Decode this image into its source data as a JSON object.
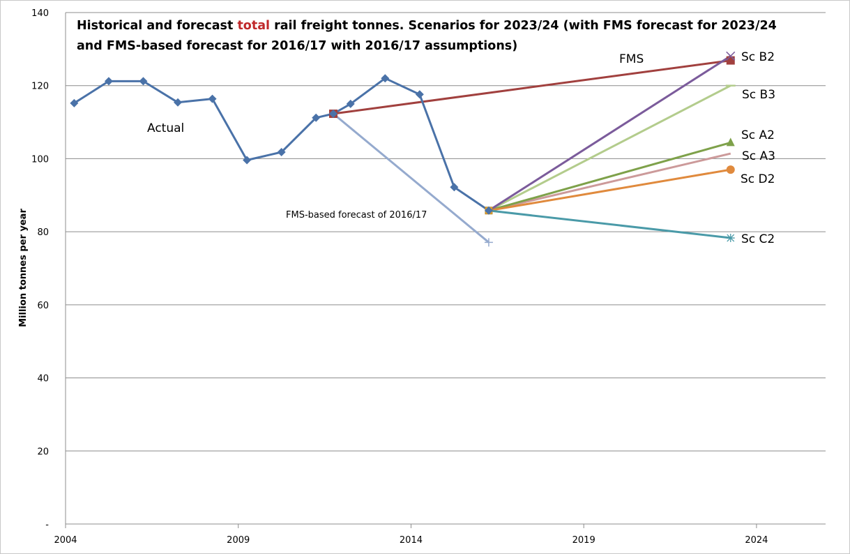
{
  "chart_data": {
    "type": "line",
    "title": {
      "line1_part1": "Historical and forecast ",
      "line1_highlight": "total",
      "line1_part2": " rail freight tonnes.  Scenarios for 2023/24 (with FMS forecast for 2023/24",
      "line2": "and FMS-based forecast for 2016/17 with 2016/17 assumptions)"
    },
    "highlight_color": "#c0282a",
    "ylabel": "Million tonnes per year",
    "xlabel": "",
    "xlim": [
      2004,
      2026
    ],
    "ylim": [
      0,
      140
    ],
    "x_ticks": [
      "2004",
      "2009",
      "2014",
      "2019",
      "2024"
    ],
    "x_tick_values": [
      2004,
      2009,
      2014,
      2019,
      2024
    ],
    "y_ticks": [
      "-",
      "20",
      "40",
      "60",
      "80",
      "100",
      "120",
      "140"
    ],
    "y_tick_values": [
      0,
      20,
      40,
      60,
      80,
      100,
      120,
      140
    ],
    "grid": "horizontal",
    "annotations": {
      "actual": "Actual",
      "fms": "FMS",
      "fms_based": "FMS-based forecast of 2016/17"
    },
    "series": [
      {
        "key": "actual",
        "marker": "diamond",
        "color": "#4a72a8",
        "x": [
          2004.25,
          2005.25,
          2006.25,
          2007.25,
          2008.25,
          2009.25,
          2010.25,
          2011.25,
          2011.75,
          2012.25,
          2013.25,
          2014.25,
          2015.25,
          2016.25
        ],
        "y": [
          115.2,
          121.2,
          121.2,
          115.4,
          116.4,
          99.6,
          101.8,
          111.2,
          112.3,
          115.0,
          122.0,
          117.6,
          92.2,
          85.8
        ]
      },
      {
        "key": "fms",
        "marker": "square",
        "color": "#a1403e",
        "x": [
          2011.75,
          2023.25
        ],
        "y": [
          112.3,
          126.9
        ]
      },
      {
        "key": "fms_based",
        "marker": "plus",
        "color": "#95aace",
        "x": [
          2011.75,
          2016.25
        ],
        "y": [
          112.3,
          77.1
        ]
      },
      {
        "key": "sc_b2",
        "name": "Sc B2",
        "marker": "x",
        "color": "#7b5b9b",
        "x": [
          2016.25,
          2023.25
        ],
        "y": [
          85.8,
          128.1
        ]
      },
      {
        "key": "sc_b3",
        "name": "Sc B3",
        "marker": "dash",
        "color": "#b3cc8c",
        "x": [
          2016.25,
          2023.25
        ],
        "y": [
          85.8,
          120.0
        ]
      },
      {
        "key": "sc_a2",
        "name": "Sc A2",
        "marker": "triangle",
        "color": "#7ea14a",
        "x": [
          2016.25,
          2023.25
        ],
        "y": [
          85.8,
          104.4
        ]
      },
      {
        "key": "sc_a3",
        "name": "Sc A3",
        "marker": "none",
        "color": "#cc9a9a",
        "x": [
          2016.25,
          2023.25
        ],
        "y": [
          85.8,
          101.4
        ]
      },
      {
        "key": "sc_d2",
        "name": "Sc D2",
        "marker": "circle",
        "color": "#e08a3d",
        "x": [
          2016.25,
          2023.25
        ],
        "y": [
          85.8,
          97.0
        ]
      },
      {
        "key": "sc_c2",
        "name": "Sc C2",
        "marker": "star",
        "color": "#4a9aa8",
        "x": [
          2016.25,
          2023.25
        ],
        "y": [
          85.8,
          78.3
        ]
      }
    ]
  }
}
